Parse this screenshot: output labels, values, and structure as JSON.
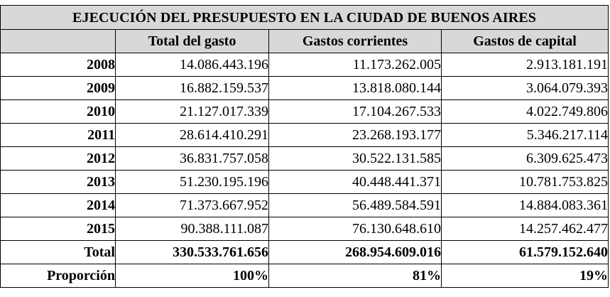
{
  "table": {
    "title": "EJECUCIÓN DEL PRESUPUESTO EN LA CIUDAD DE BUENOS AIRES",
    "columns": [
      "Total del gasto",
      "Gastos corrientes",
      "Gastos de capital"
    ],
    "rows": [
      {
        "label": "2008",
        "values": [
          "14.086.443.196",
          "11.173.262.005",
          "2.913.181.191"
        ]
      },
      {
        "label": "2009",
        "values": [
          "16.882.159.537",
          "13.818.080.144",
          "3.064.079.393"
        ]
      },
      {
        "label": "2010",
        "values": [
          "21.127.017.339",
          "17.104.267.533",
          "4.022.749.806"
        ]
      },
      {
        "label": "2011",
        "values": [
          "28.614.410.291",
          "23.268.193.177",
          "5.346.217.114"
        ]
      },
      {
        "label": "2012",
        "values": [
          "36.831.757.058",
          "30.522.131.585",
          "6.309.625.473"
        ]
      },
      {
        "label": "2013",
        "values": [
          "51.230.195.196",
          "40.448.441.371",
          "10.781.753.825"
        ]
      },
      {
        "label": "2014",
        "values": [
          "71.373.667.952",
          "56.489.584.591",
          "14.884.083.361"
        ]
      },
      {
        "label": "2015",
        "values": [
          "90.388.111.087",
          "76.130.648.610",
          "14.257.462.477"
        ]
      },
      {
        "label": "Total",
        "values": [
          "330.533.761.656",
          "268.954.609.016",
          "61.579.152.640"
        ]
      },
      {
        "label": "Proporción",
        "values": [
          "100%",
          "81%",
          "19%"
        ]
      }
    ],
    "header_bg": "#d8d8d8"
  }
}
